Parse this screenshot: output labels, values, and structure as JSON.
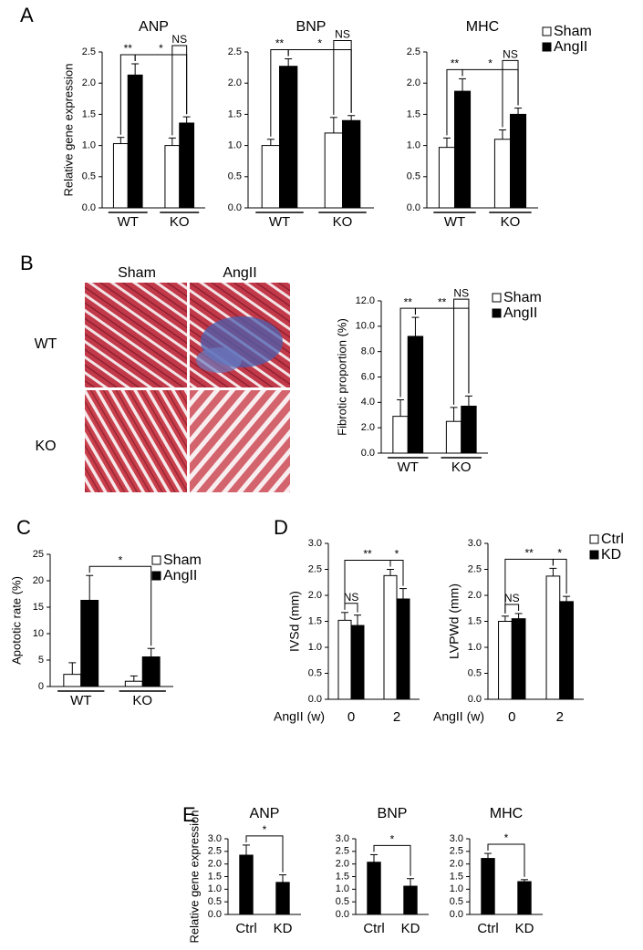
{
  "panel_labels": [
    "A",
    "B",
    "C",
    "D",
    "E"
  ],
  "micrograph": {
    "columns": [
      "Sham",
      "AngII"
    ],
    "rows": [
      "WT",
      "KO"
    ]
  },
  "chart_data": [
    {
      "type": "bar",
      "title": "ANP",
      "y_label": "Relative gene expression",
      "categories": [
        "WT",
        "KO"
      ],
      "series": [
        {
          "color": "#ffffff",
          "values": [
            1.03,
            1.0
          ],
          "errors": [
            0.1,
            0.12
          ]
        },
        {
          "color": "#000000",
          "values": [
            2.13,
            1.36
          ],
          "errors": [
            0.18,
            0.1
          ]
        }
      ],
      "ylim": [
        0,
        2.5
      ],
      "yticks": [
        {
          "value": 0,
          "label": "0.0"
        },
        {
          "value": 0.5,
          "label": "0.5"
        },
        {
          "value": 1,
          "label": "1.0"
        },
        {
          "value": 1.5,
          "label": "1.5"
        },
        {
          "value": 2,
          "label": "2.0"
        },
        {
          "value": 2.5,
          "label": "2.5"
        }
      ],
      "annotations": [
        "**",
        "*",
        "NS"
      ]
    },
    {
      "type": "bar",
      "title": "BNP",
      "categories": [
        "WT",
        "KO"
      ],
      "series": [
        {
          "color": "#ffffff",
          "values": [
            1.0,
            1.2
          ],
          "errors": [
            0.1,
            0.25
          ]
        },
        {
          "color": "#000000",
          "values": [
            2.27,
            1.4
          ],
          "errors": [
            0.12,
            0.08
          ]
        }
      ],
      "ylim": [
        0,
        2.5
      ],
      "yticks": [
        {
          "value": 0,
          "label": "0.0"
        },
        {
          "value": 0.5,
          "label": "0.5"
        },
        {
          "value": 1,
          "label": "1.0"
        },
        {
          "value": 1.5,
          "label": "1.5"
        },
        {
          "value": 2,
          "label": "2.0"
        },
        {
          "value": 2.5,
          "label": "2.5"
        }
      ],
      "annotations": [
        "**",
        "*",
        "NS"
      ]
    },
    {
      "type": "bar",
      "title": "MHC",
      "categories": [
        "WT",
        "KO"
      ],
      "legend": "upper right",
      "series": [
        {
          "name": "Sham",
          "color": "#ffffff",
          "values": [
            0.97,
            1.1
          ],
          "errors": [
            0.15,
            0.15
          ]
        },
        {
          "name": "AngII",
          "color": "#000000",
          "values": [
            1.87,
            1.5
          ],
          "errors": [
            0.2,
            0.1
          ]
        }
      ],
      "ylim": [
        0,
        2.5
      ],
      "yticks": [
        {
          "value": 0,
          "label": "0.0"
        },
        {
          "value": 0.5,
          "label": "0.5"
        },
        {
          "value": 1,
          "label": "1.0"
        },
        {
          "value": 1.5,
          "label": "1.5"
        },
        {
          "value": 2,
          "label": "2.0"
        },
        {
          "value": 2.5,
          "label": "2.5"
        }
      ],
      "annotations": [
        "**",
        "*",
        "NS"
      ]
    },
    {
      "type": "bar",
      "y_label": "Fibrotic proportion (%)",
      "categories": [
        "WT",
        "KO"
      ],
      "legend": "upper right",
      "series": [
        {
          "name": "Sham",
          "color": "#ffffff",
          "values": [
            2.9,
            2.5
          ],
          "errors": [
            1.3,
            1.1
          ]
        },
        {
          "name": "AngII",
          "color": "#000000",
          "values": [
            9.2,
            3.7
          ],
          "errors": [
            1.5,
            0.8
          ]
        }
      ],
      "ylim": [
        0,
        12
      ],
      "yticks": [
        {
          "value": 0,
          "label": "0.0"
        },
        {
          "value": 2,
          "label": "2.0"
        },
        {
          "value": 4,
          "label": "4.0"
        },
        {
          "value": 6,
          "label": "6.0"
        },
        {
          "value": 8,
          "label": "8.0"
        },
        {
          "value": 10,
          "label": "10.0"
        },
        {
          "value": 12,
          "label": "12.0"
        }
      ],
      "annotations": [
        "**",
        "**",
        "NS"
      ]
    },
    {
      "type": "bar",
      "y_label": "Apototic rate (%)",
      "categories": [
        "WT",
        "KO"
      ],
      "legend": "upper right",
      "series": [
        {
          "name": "Sham",
          "color": "#ffffff",
          "values": [
            2.3,
            1.0
          ],
          "errors": [
            2.2,
            1.0
          ]
        },
        {
          "name": "AngII",
          "color": "#000000",
          "values": [
            16.3,
            5.6
          ],
          "errors": [
            4.7,
            1.6
          ]
        }
      ],
      "ylim": [
        0,
        25
      ],
      "yticks": [
        0,
        5,
        10,
        15,
        20,
        25
      ],
      "annotations": [
        "*"
      ]
    },
    {
      "type": "bar",
      "y_label": "IVSd (mm)",
      "x_label": "AngII (w)",
      "categories": [
        "0",
        "2"
      ],
      "series": [
        {
          "color": "#ffffff",
          "values": [
            1.52,
            2.38
          ],
          "errors": [
            0.15,
            0.12
          ]
        },
        {
          "color": "#000000",
          "values": [
            1.42,
            1.93
          ],
          "errors": [
            0.2,
            0.2
          ]
        }
      ],
      "ylim": [
        0,
        3
      ],
      "yticks": [
        {
          "value": 0,
          "label": "0.0"
        },
        {
          "value": 0.5,
          "label": "0.5"
        },
        {
          "value": 1,
          "label": "1.0"
        },
        {
          "value": 1.5,
          "label": "1.5"
        },
        {
          "value": 2,
          "label": "2.0"
        },
        {
          "value": 2.5,
          "label": "2.5"
        },
        {
          "value": 3,
          "label": "3.0"
        }
      ],
      "annotations": [
        "NS",
        "**",
        "*"
      ]
    },
    {
      "type": "bar",
      "y_label": "LVPWd (mm)",
      "x_label": "AngII (w)",
      "categories": [
        "0",
        "2"
      ],
      "legend": "upper right",
      "series": [
        {
          "name": "Ctrl",
          "color": "#ffffff",
          "values": [
            1.5,
            2.37
          ],
          "errors": [
            0.1,
            0.15
          ]
        },
        {
          "name": "KD",
          "color": "#000000",
          "values": [
            1.55,
            1.88
          ],
          "errors": [
            0.1,
            0.1
          ]
        }
      ],
      "ylim": [
        0,
        3
      ],
      "yticks": [
        {
          "value": 0,
          "label": "0.0"
        },
        {
          "value": 0.5,
          "label": "0.5"
        },
        {
          "value": 1,
          "label": "1.0"
        },
        {
          "value": 1.5,
          "label": "1.5"
        },
        {
          "value": 2,
          "label": "2.0"
        },
        {
          "value": 2.5,
          "label": "2.5"
        },
        {
          "value": 3,
          "label": "3.0"
        }
      ],
      "annotations": [
        "NS",
        "**",
        "*"
      ]
    },
    {
      "type": "bar",
      "title": "ANP",
      "y_label": "Relative gene expression",
      "categories": [
        "Ctrl",
        "KD"
      ],
      "series": [
        {
          "color": "#000000",
          "values": [
            2.35,
            1.27
          ],
          "errors": [
            0.4,
            0.3
          ]
        }
      ],
      "ylim": [
        0,
        3
      ],
      "yticks": [
        {
          "value": 0,
          "label": "0.0"
        },
        {
          "value": 0.5,
          "label": "0.5"
        },
        {
          "value": 1,
          "label": "1.0"
        },
        {
          "value": 1.5,
          "label": "1.5"
        },
        {
          "value": 2,
          "label": "2.0"
        },
        {
          "value": 2.5,
          "label": "2.5"
        },
        {
          "value": 3,
          "label": "3.0"
        }
      ],
      "annotations": [
        "*"
      ]
    },
    {
      "type": "bar",
      "title": "BNP",
      "categories": [
        "Ctrl",
        "KD"
      ],
      "series": [
        {
          "color": "#000000",
          "values": [
            2.07,
            1.12
          ],
          "errors": [
            0.3,
            0.3
          ]
        }
      ],
      "ylim": [
        0,
        3
      ],
      "yticks": [
        {
          "value": 0,
          "label": "0.0"
        },
        {
          "value": 0.5,
          "label": "0.5"
        },
        {
          "value": 1,
          "label": "1.0"
        },
        {
          "value": 1.5,
          "label": "1.5"
        },
        {
          "value": 2,
          "label": "2.0"
        },
        {
          "value": 2.5,
          "label": "2.5"
        },
        {
          "value": 3,
          "label": "3.0"
        }
      ],
      "annotations": [
        "*"
      ]
    },
    {
      "type": "bar",
      "title": "MHC",
      "categories": [
        "Ctrl",
        "KD"
      ],
      "series": [
        {
          "color": "#000000",
          "values": [
            2.22,
            1.3
          ],
          "errors": [
            0.2,
            0.08
          ]
        }
      ],
      "ylim": [
        0,
        3
      ],
      "yticks": [
        {
          "value": 0,
          "label": "0.0"
        },
        {
          "value": 0.5,
          "label": "0.5"
        },
        {
          "value": 1,
          "label": "1.0"
        },
        {
          "value": 1.5,
          "label": "1.5"
        },
        {
          "value": 2,
          "label": "2.0"
        },
        {
          "value": 2.5,
          "label": "2.5"
        },
        {
          "value": 3,
          "label": "3.0"
        }
      ],
      "annotations": [
        "*"
      ]
    }
  ]
}
